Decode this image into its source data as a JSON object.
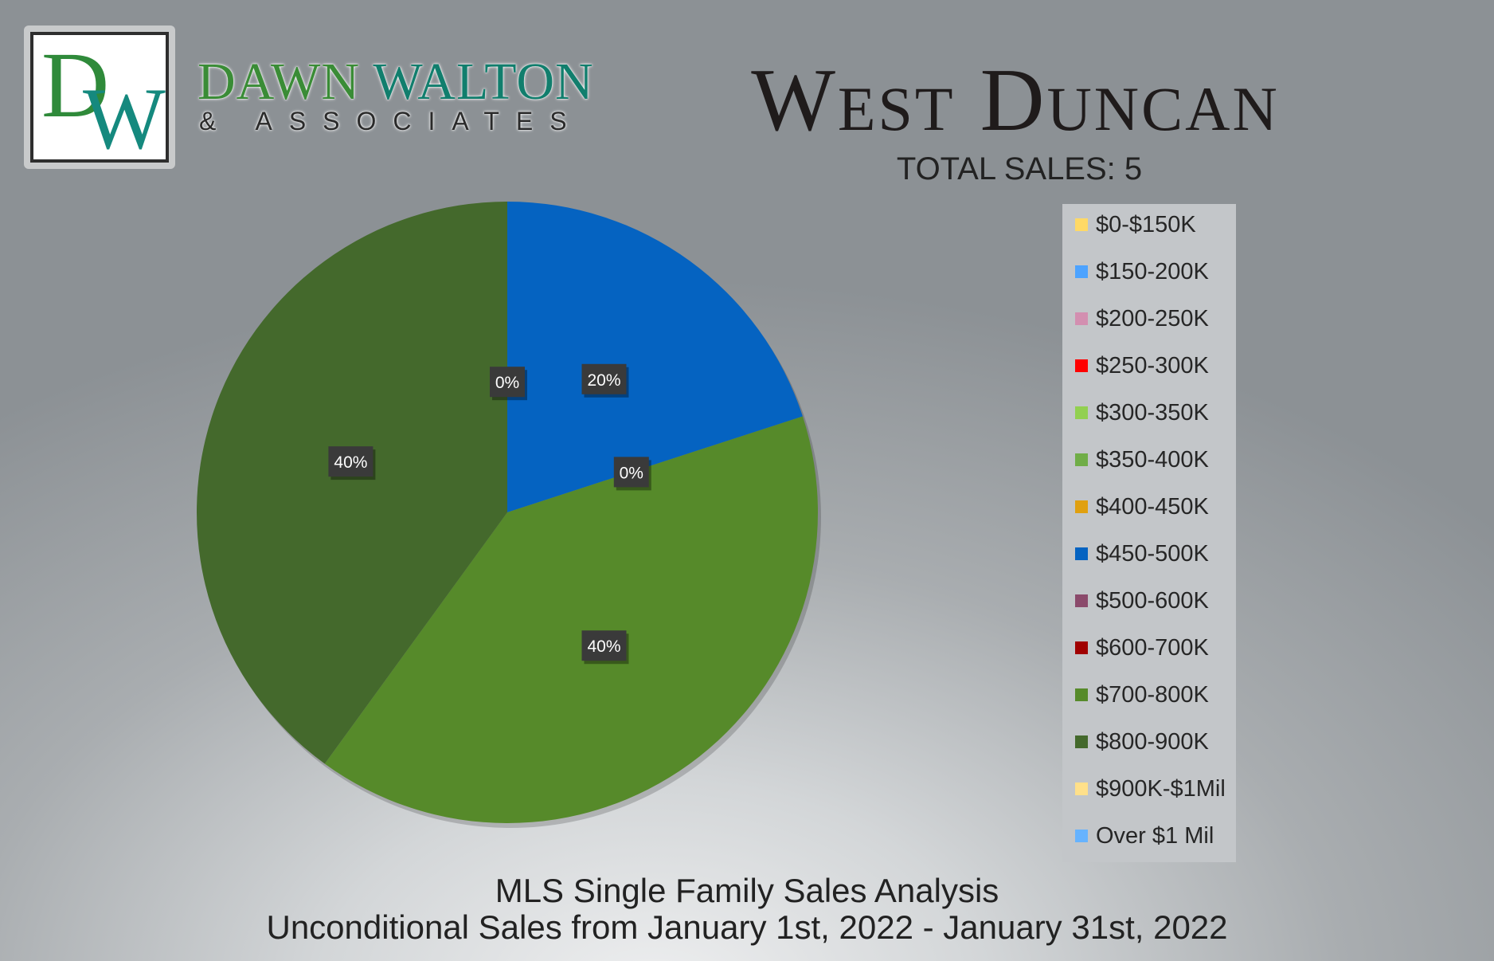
{
  "brand": {
    "monogram_d": "D",
    "monogram_w": "W",
    "name_first": "DAWN",
    "name_last": "WALTON",
    "tagline": "& ASSOCIATES"
  },
  "header": {
    "title": "West Duncan",
    "subtitle": "TOTAL SALES: 5"
  },
  "footer": {
    "line1": "MLS Single Family Sales Analysis",
    "line2": "Unconditional Sales from January 1st, 2022 - January 31st, 2022"
  },
  "chart_data": {
    "type": "pie",
    "title": "West Duncan",
    "legend_position": "right",
    "categories": [
      "$0-$150K",
      "$150-200K",
      "$200-250K",
      "$250-300K",
      "$300-350K",
      "$350-400K",
      "$400-450K",
      "$450-500K",
      "$500-600K",
      "$600-700K",
      "$700-800K",
      "$800-900K",
      "$900K-$1Mil",
      "Over $1 Mil"
    ],
    "colors": [
      "#ffd966",
      "#4da3ff",
      "#d38fb0",
      "#ff0000",
      "#92d050",
      "#70ad47",
      "#e0a010",
      "#0563c1",
      "#8b4a6b",
      "#a00000",
      "#568a2a",
      "#44692c",
      "#ffe08a",
      "#66b3ff"
    ],
    "values": [
      0,
      0,
      0,
      0,
      0,
      0,
      0,
      20,
      0,
      0,
      40,
      40,
      0,
      0
    ],
    "data_labels": [
      {
        "category": "$450-500K",
        "text": "0%"
      },
      {
        "category": "$450-500K",
        "text": "20%"
      },
      {
        "category": "$700-800K",
        "text": "0%"
      },
      {
        "category": "$700-800K",
        "text": "40%"
      },
      {
        "category": "$800-900K",
        "text": "40%"
      }
    ]
  }
}
